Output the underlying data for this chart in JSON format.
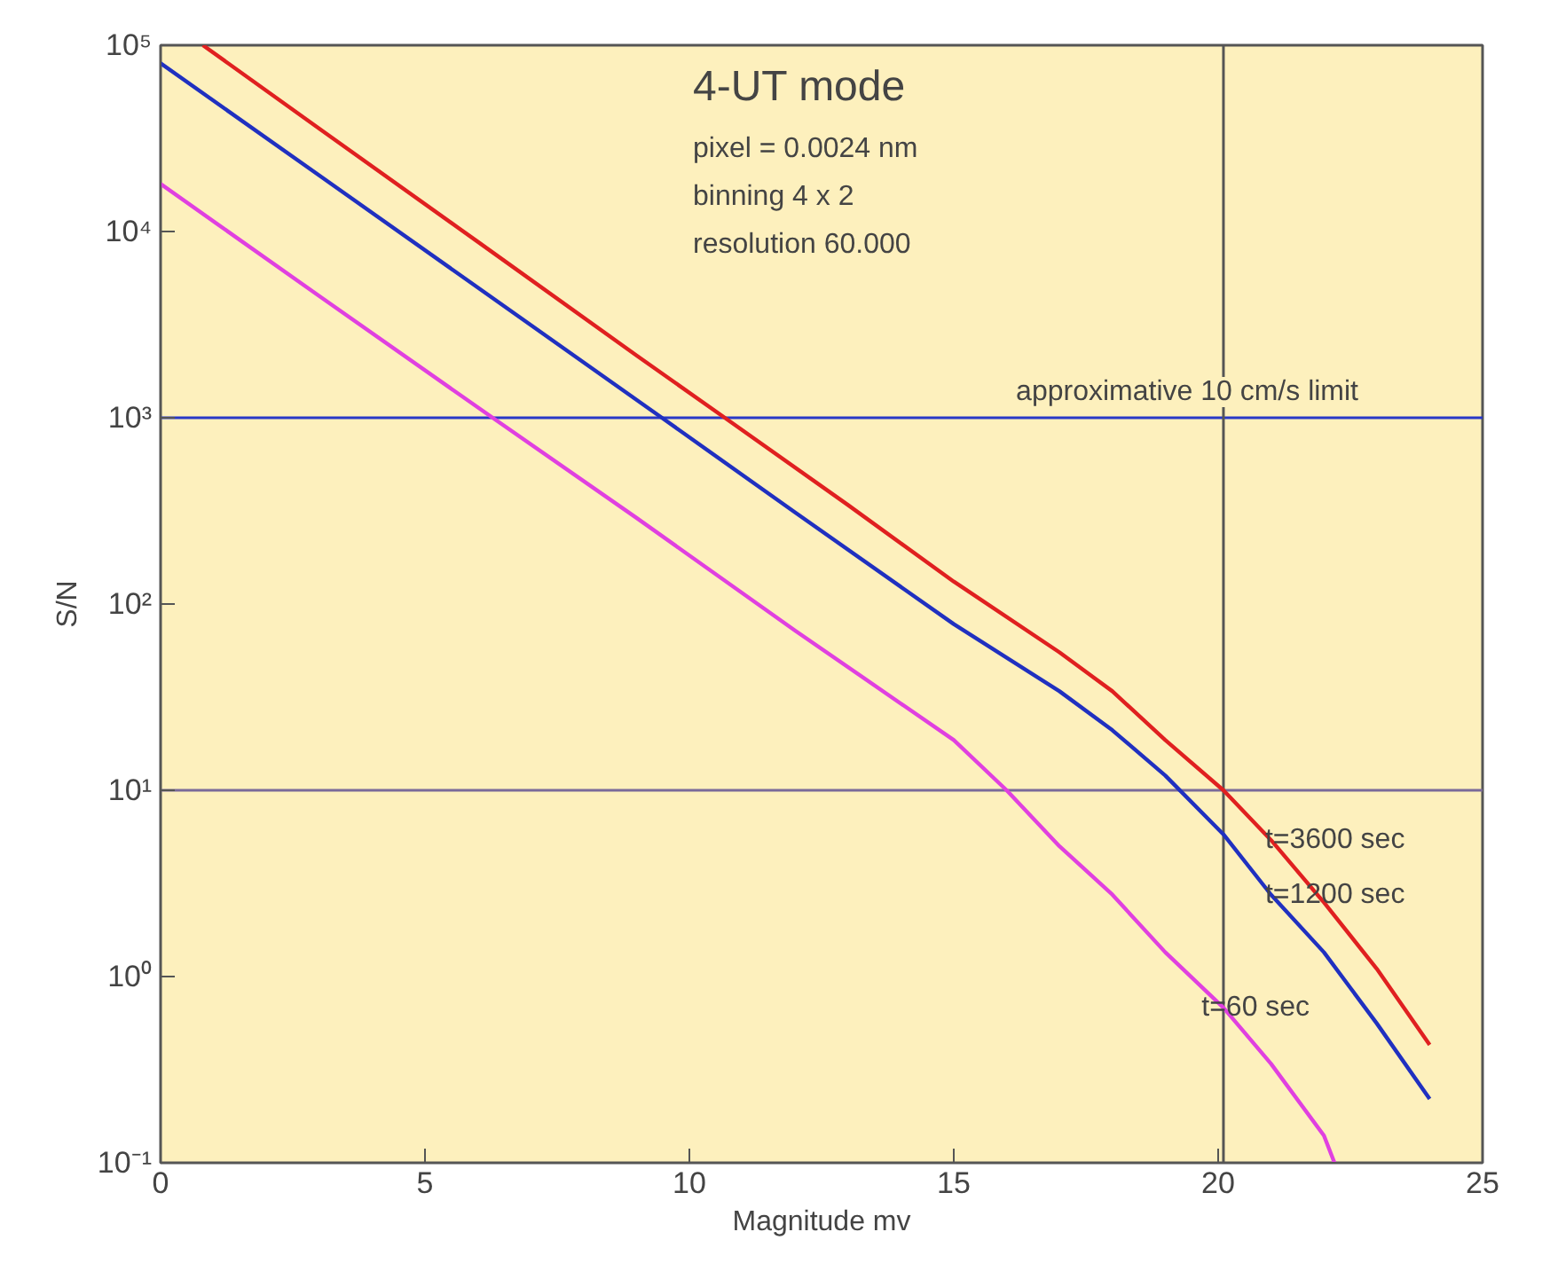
{
  "chart_data": {
    "type": "line",
    "xlabel": "Magnitude mv",
    "ylabel": "S/N",
    "annotations": [
      "4-UT mode",
      "pixel = 0.0024 nm",
      "binning 4 x 2",
      "resolution 60.000"
    ],
    "log": "y",
    "grid": false,
    "marker": "none",
    "line_style": "solid",
    "xlim": [
      0,
      25
    ],
    "xticks": [
      0,
      5,
      10,
      15,
      20,
      25
    ],
    "ylim": [
      0.1,
      100000
    ],
    "yticks": [
      {
        "value": 0.1,
        "label": "10⁻¹"
      },
      {
        "value": 1,
        "label": "10⁰"
      },
      {
        "value": 10,
        "label": "10¹"
      },
      {
        "value": 100,
        "label": "10²"
      },
      {
        "value": 1000,
        "label": "10³"
      },
      {
        "value": 10000,
        "label": "10⁴"
      },
      {
        "value": 100000,
        "label": "10⁵"
      }
    ],
    "series": [
      {
        "name": "t=3600 sec",
        "color": "#e02020",
        "x": [
          0.8,
          3,
          6,
          9,
          10.67,
          13,
          15,
          17,
          18,
          19,
          20.1,
          21,
          22,
          23,
          24
        ],
        "values": [
          100000,
          35700,
          8800,
          2160,
          1000,
          340,
          132,
          55,
          34,
          18.6,
          10,
          5.4,
          2.5,
          1.1,
          0.43
        ]
      },
      {
        "name": "t=1200 sec",
        "color": "#2030c0",
        "x": [
          0,
          3,
          6,
          9.48,
          12,
          15,
          17,
          18,
          19,
          20.1,
          21,
          22,
          23,
          24
        ],
        "values": [
          80000,
          20000,
          5000,
          1000,
          310,
          78,
          34,
          21,
          12,
          5.8,
          2.75,
          1.35,
          0.56,
          0.22
        ]
      },
      {
        "name": "t=60 sec",
        "color": "#e040e0",
        "x": [
          0,
          3,
          6.28,
          9,
          12,
          15,
          16,
          17,
          18,
          19,
          20.1,
          21,
          22,
          22.2
        ],
        "values": [
          18000,
          4500,
          1000,
          290,
          72,
          18.6,
          10,
          5,
          2.75,
          1.35,
          0.68,
          0.34,
          0.14,
          0.1
        ]
      }
    ],
    "ref_lines": [
      {
        "axis": "y",
        "value": 1000,
        "label": "approximative 10 cm/s limit",
        "color": "#2838c8"
      },
      {
        "axis": "y",
        "value": 10,
        "label": null,
        "color": "#7a6a9a"
      },
      {
        "axis": "x",
        "value": 20.1,
        "label": null,
        "color": "#555555"
      }
    ]
  }
}
